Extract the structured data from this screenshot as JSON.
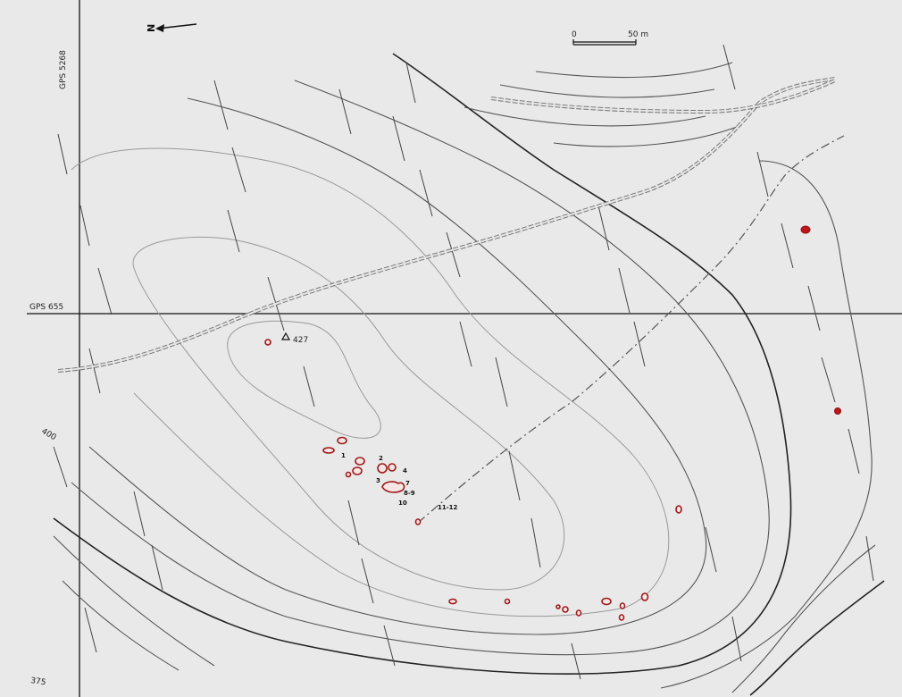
{
  "map": {
    "north_label": "N",
    "scale_start": "0",
    "scale_end": "50 m",
    "grid_label_vertical": "GPS 5268",
    "grid_label_horizontal": "GPS 655",
    "summit_label": "427",
    "contour_label_400": "400",
    "contour_label_375": "375",
    "feature_labels": [
      "1",
      "2",
      "3",
      "4",
      "7",
      "8-9",
      "10",
      "11-12"
    ],
    "colors": {
      "background": "#e9e9e9",
      "feature_outline": "#a01818",
      "feature_fill": "#c0161b",
      "contour": "#555555"
    }
  }
}
